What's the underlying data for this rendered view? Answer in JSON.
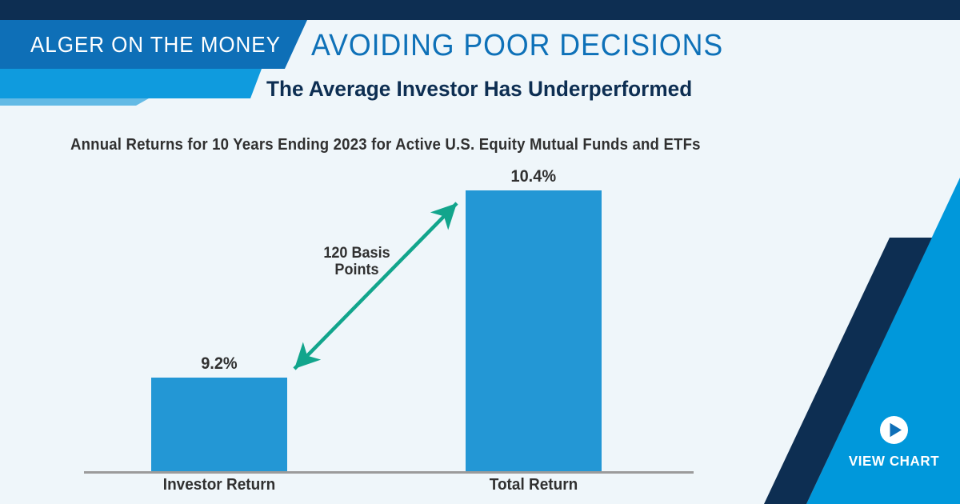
{
  "brand": {
    "label": "ALGER ON THE MONEY"
  },
  "header": {
    "title": "AVOIDING POOR DECISIONS",
    "subtitle": "The Average Investor Has Underperformed"
  },
  "cta": {
    "label": "VIEW CHART",
    "icon": "play-icon"
  },
  "colors": {
    "navy": "#0D2E52",
    "brand_band_blue": "#0E6FB7",
    "light_band_blue": "#0F9BDE",
    "decor_blue": "#0098DB",
    "bar_blue": "#2397D5",
    "title_blue": "#0E71B8",
    "arrow_teal": "#12A58C",
    "background": "#EFF6FA",
    "axis_gray": "#9B9B9B",
    "text_dark": "#303030"
  },
  "chart_data": {
    "type": "bar",
    "title": "Annual Returns for 10 Years Ending 2023 for Active U.S. Equity Mutual Funds and ETFs",
    "categories": [
      "Investor Return",
      "Total Return"
    ],
    "values": [
      9.2,
      10.4
    ],
    "value_labels": [
      "9.2%",
      "10.4%"
    ],
    "unit": "%",
    "ylim": [
      8.6,
      10.9
    ],
    "grid": false,
    "legend": false,
    "annotation": "120 Basis Points",
    "annotation_lines": [
      "120 Basis",
      "Points"
    ]
  }
}
